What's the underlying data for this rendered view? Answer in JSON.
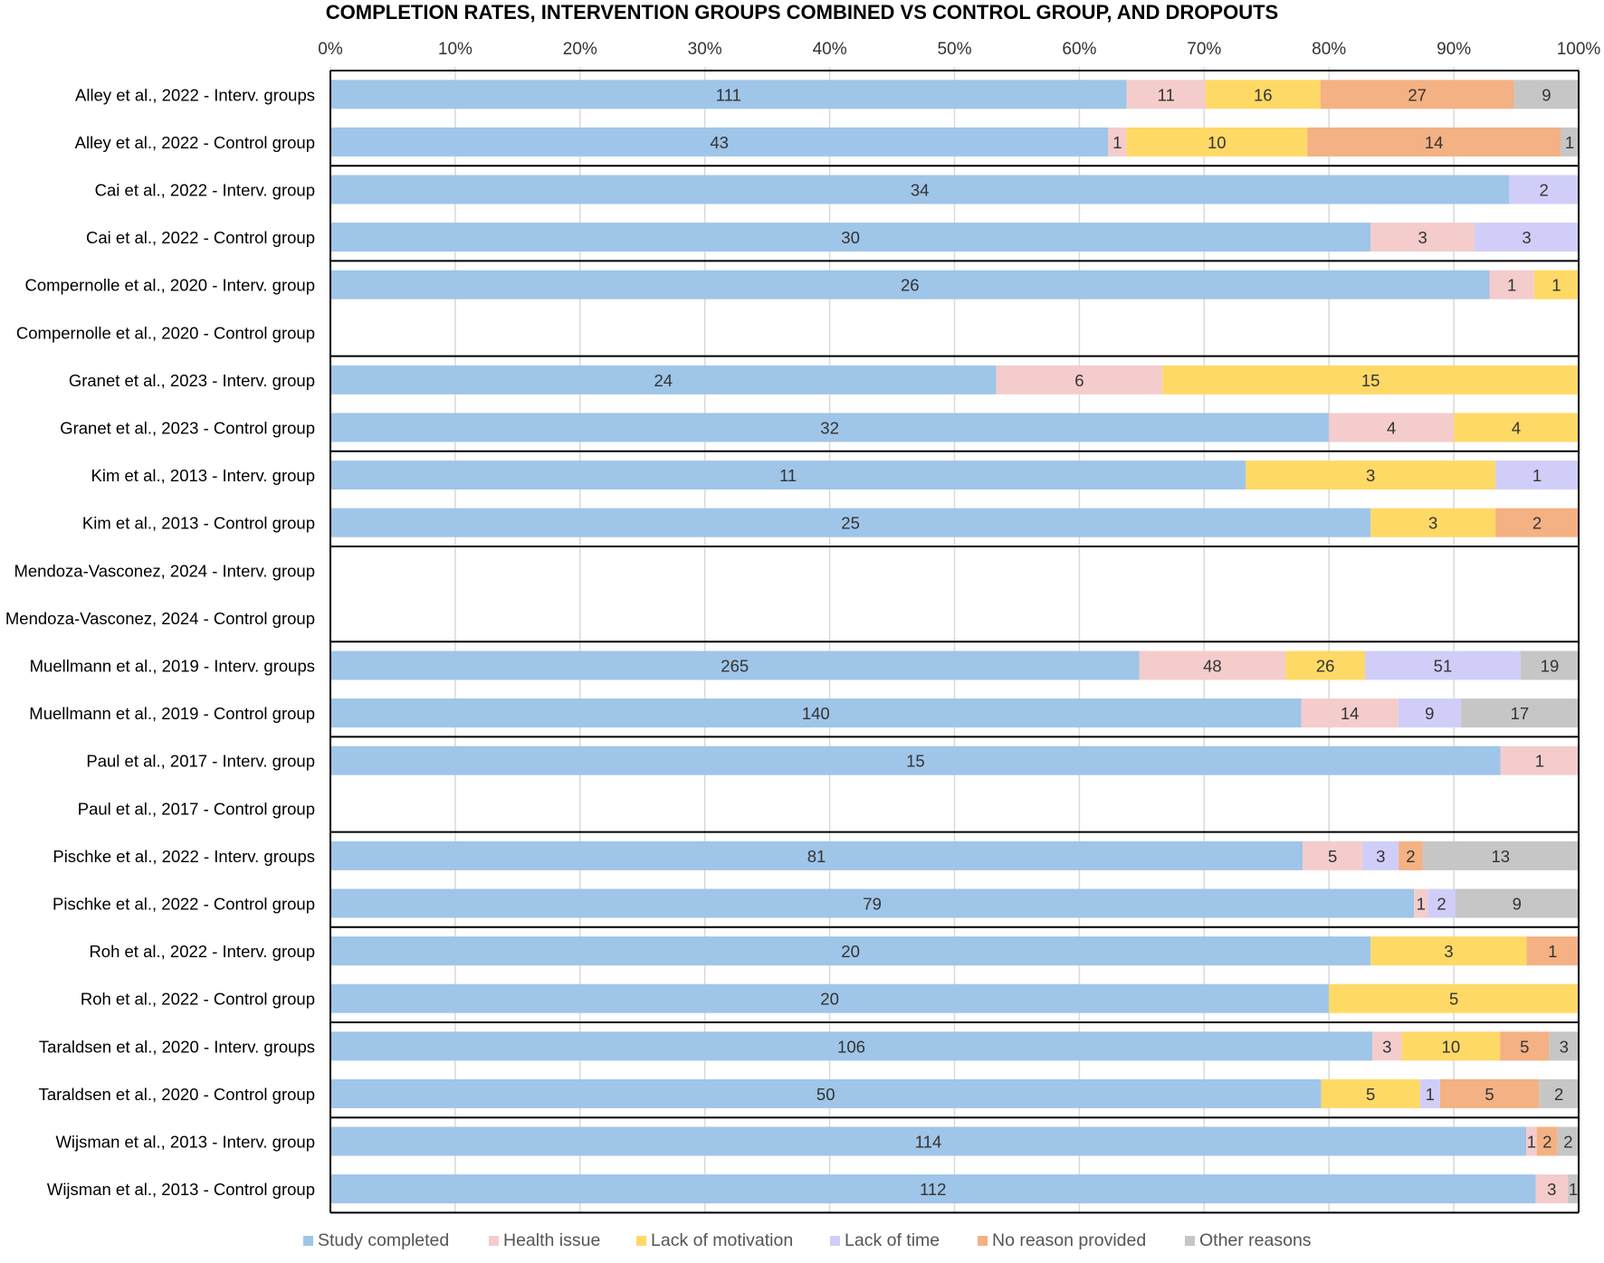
{
  "chart_data": {
    "type": "bar",
    "stacked": "percent",
    "orientation": "horizontal",
    "title": "COMPLETION RATES, INTERVENTION GROUPS COMBINED VS CONTROL GROUP, AND DROPOUTS",
    "xlabel": "",
    "ylabel": "",
    "xlim": [
      0,
      100
    ],
    "x_ticks": [
      "0%",
      "10%",
      "20%",
      "30%",
      "40%",
      "50%",
      "60%",
      "70%",
      "80%",
      "90%",
      "100%"
    ],
    "grid": true,
    "legend_position": "bottom",
    "categories": [
      "Alley et al., 2022 - Interv. groups",
      "Alley et al., 2022 - Control group",
      "Cai et al., 2022 - Interv. group",
      "Cai et al., 2022 - Control group",
      "Compernolle et al., 2020 - Interv. group",
      "Compernolle et al., 2020 - Control group",
      "Granet et al., 2023 - Interv. group",
      "Granet et al., 2023 - Control group",
      "Kim et al., 2013 - Interv. group",
      "Kim et al., 2013 - Control group",
      "Mendoza-Vasconez, 2024 - Interv. group",
      "Mendoza-Vasconez, 2024 - Control group",
      "Muellmann et al., 2019 - Interv. groups",
      "Muellmann et al., 2019 - Control group",
      "Paul et al., 2017 - Interv. group",
      "Paul et al., 2017 - Control group",
      "Pischke et al., 2022 - Interv. groups",
      "Pischke et al., 2022 - Control group",
      "Roh et al., 2022 - Interv. group",
      "Roh et al., 2022 - Control group",
      "Taraldsen et al., 2020 - Interv. groups",
      "Taraldsen et al., 2020 - Control group",
      "Wijsman et al., 2013 - Interv. group",
      "Wijsman et al., 2013 - Control group"
    ],
    "series": [
      {
        "name": "Study completed",
        "color": "#9fc5e8",
        "values": [
          111,
          43,
          34,
          30,
          26,
          0,
          24,
          32,
          11,
          25,
          0,
          0,
          265,
          140,
          15,
          0,
          81,
          79,
          20,
          20,
          106,
          50,
          114,
          112
        ]
      },
      {
        "name": "Health issue",
        "color": "#f4cccc",
        "values": [
          11,
          1,
          0,
          3,
          1,
          0,
          6,
          4,
          0,
          0,
          0,
          0,
          48,
          14,
          1,
          0,
          5,
          1,
          0,
          0,
          3,
          0,
          1,
          3
        ]
      },
      {
        "name": "Lack of motivation",
        "color": "#ffd966",
        "values": [
          16,
          10,
          0,
          0,
          1,
          0,
          15,
          4,
          3,
          3,
          0,
          0,
          26,
          0,
          0,
          0,
          0,
          0,
          3,
          5,
          10,
          5,
          0,
          0
        ]
      },
      {
        "name": "Lack of time",
        "color": "#d0cef8",
        "values": [
          0,
          0,
          2,
          3,
          0,
          0,
          0,
          0,
          1,
          0,
          0,
          0,
          51,
          9,
          0,
          0,
          3,
          2,
          0,
          0,
          0,
          1,
          0,
          0
        ]
      },
      {
        "name": "No reason provided",
        "color": "#f4b183",
        "values": [
          27,
          14,
          0,
          0,
          0,
          0,
          0,
          0,
          0,
          2,
          0,
          0,
          0,
          0,
          0,
          0,
          2,
          0,
          1,
          0,
          5,
          5,
          2,
          0
        ]
      },
      {
        "name": "Other reasons",
        "color": "#c6c6c6",
        "values": [
          9,
          1,
          0,
          0,
          0,
          0,
          0,
          0,
          0,
          0,
          0,
          0,
          19,
          17,
          0,
          0,
          13,
          9,
          0,
          0,
          3,
          2,
          2,
          1
        ]
      }
    ]
  }
}
